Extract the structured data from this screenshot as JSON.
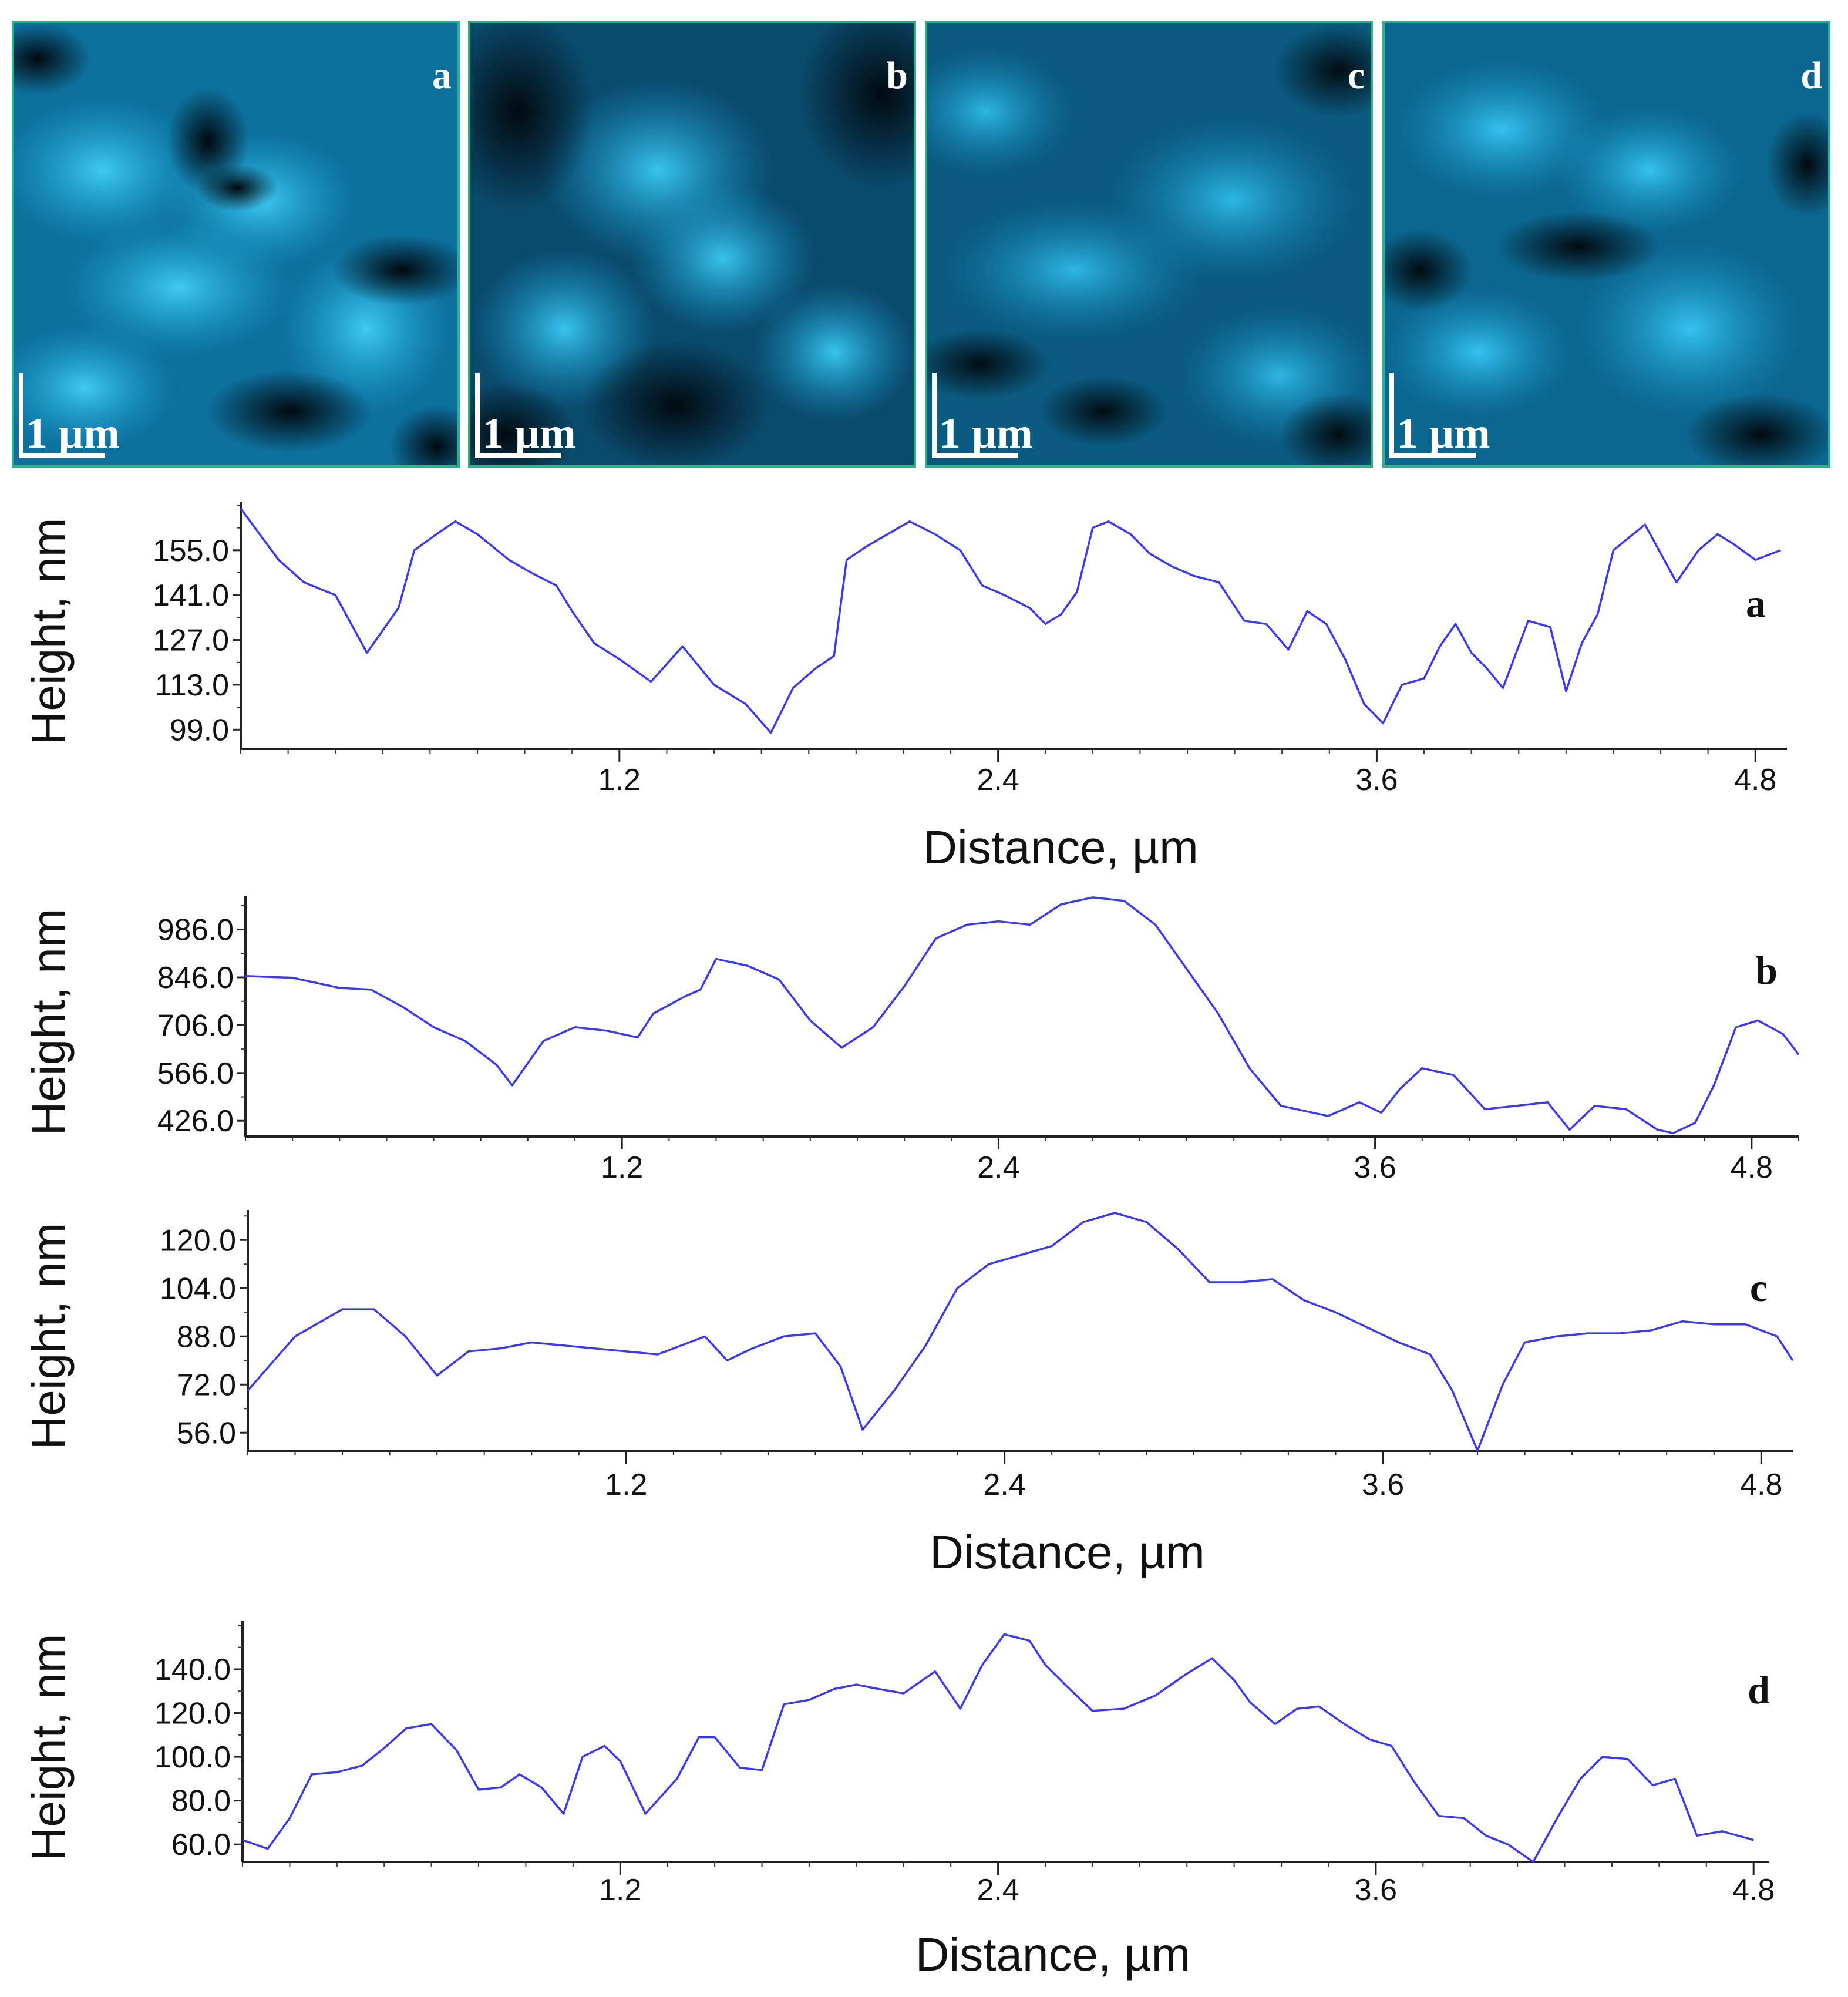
{
  "figure": {
    "afm_panels": [
      {
        "letter": "a",
        "scalebar": "1 µm"
      },
      {
        "letter": "b",
        "scalebar": "1 µm"
      },
      {
        "letter": "c",
        "scalebar": "1 µm"
      },
      {
        "letter": "d",
        "scalebar": "1 µm"
      }
    ],
    "colors": {
      "afm_dark": "#020f18",
      "afm_mid": "#0a5a82",
      "afm_bright": "#23b8e6",
      "frame": "#2fb08a",
      "line": "#3a3af0"
    }
  },
  "chart_data": [
    {
      "type": "line",
      "panel_label": "a",
      "xlabel": "Distance, µm",
      "ylabel": "Height, nm",
      "xlim": [
        0,
        4.9
      ],
      "ylim": [
        93,
        170
      ],
      "xticks": [
        1.2,
        2.4,
        3.6,
        4.8
      ],
      "xtick_labels": [
        "1.2",
        "2.4",
        "3.6",
        "4.8"
      ],
      "yticks": [
        99,
        113,
        127,
        141,
        155
      ],
      "ytick_labels": [
        "99.0",
        "113.0",
        "127.0",
        "141.0",
        "155.0"
      ],
      "series": [
        {
          "name": "a",
          "x": [
            0,
            0.12,
            0.2,
            0.3,
            0.4,
            0.5,
            0.55,
            0.62,
            0.68,
            0.75,
            0.85,
            0.92,
            1.0,
            1.05,
            1.12,
            1.2,
            1.3,
            1.4,
            1.5,
            1.6,
            1.68,
            1.75,
            1.82,
            1.88,
            1.92,
            1.98,
            2.05,
            2.12,
            2.2,
            2.28,
            2.35,
            2.42,
            2.5,
            2.55,
            2.6,
            2.65,
            2.7,
            2.75,
            2.82,
            2.88,
            2.95,
            3.02,
            3.1,
            3.18,
            3.25,
            3.32,
            3.38,
            3.44,
            3.5,
            3.56,
            3.62,
            3.68,
            3.75,
            3.8,
            3.85,
            3.9,
            3.95,
            4.0,
            4.08,
            4.15,
            4.2,
            4.25,
            4.3,
            4.35,
            4.45,
            4.55,
            4.62,
            4.68,
            4.73,
            4.8,
            4.88
          ],
          "y": [
            168,
            152,
            145,
            141,
            123,
            137,
            155,
            160,
            164,
            160,
            152,
            148,
            144,
            136,
            126,
            121,
            114,
            125,
            113,
            107,
            98,
            112,
            118,
            122,
            152,
            156,
            160,
            164,
            160,
            155,
            144,
            141,
            137,
            132,
            135,
            142,
            162,
            164,
            160,
            154,
            150,
            147,
            145,
            133,
            132,
            124,
            136,
            132,
            121,
            107,
            101,
            113,
            115,
            125,
            132,
            123,
            118,
            112,
            133,
            131,
            111,
            126,
            135,
            155,
            163,
            145,
            155,
            160,
            157,
            152,
            155
          ]
        }
      ]
    },
    {
      "type": "line",
      "panel_label": "b",
      "xlabel": "",
      "ylabel": "Height, nm",
      "xlim": [
        0,
        4.95
      ],
      "ylim": [
        380,
        1085
      ],
      "xticks": [
        1.2,
        2.4,
        3.6,
        4.8
      ],
      "xtick_labels": [
        "1.2",
        "2.4",
        "3.6",
        "4.8"
      ],
      "yticks": [
        426,
        566,
        706,
        846,
        986
      ],
      "ytick_labels": [
        "426.0",
        "566.0",
        "706.0",
        "846.0",
        "986.0"
      ],
      "series": [
        {
          "name": "b",
          "x": [
            0,
            0.15,
            0.3,
            0.4,
            0.5,
            0.6,
            0.7,
            0.8,
            0.85,
            0.95,
            1.05,
            1.15,
            1.25,
            1.3,
            1.4,
            1.45,
            1.5,
            1.6,
            1.7,
            1.8,
            1.9,
            2.0,
            2.1,
            2.2,
            2.3,
            2.4,
            2.5,
            2.6,
            2.7,
            2.8,
            2.9,
            3.0,
            3.1,
            3.2,
            3.3,
            3.45,
            3.55,
            3.62,
            3.68,
            3.75,
            3.85,
            3.95,
            4.05,
            4.15,
            4.22,
            4.3,
            4.4,
            4.5,
            4.55,
            4.62,
            4.68,
            4.75,
            4.82,
            4.9,
            4.95
          ],
          "y": [
            850,
            845,
            815,
            810,
            760,
            700,
            660,
            590,
            530,
            660,
            700,
            690,
            670,
            740,
            790,
            810,
            900,
            880,
            840,
            720,
            640,
            700,
            820,
            960,
            1000,
            1010,
            1000,
            1060,
            1080,
            1070,
            1000,
            870,
            740,
            580,
            470,
            440,
            480,
            450,
            520,
            580,
            560,
            460,
            470,
            480,
            400,
            470,
            460,
            400,
            390,
            420,
            530,
            700,
            720,
            680,
            620
          ]
        }
      ]
    },
    {
      "type": "line",
      "panel_label": "c",
      "xlabel": "Distance, µm",
      "ylabel": "Height, nm",
      "xlim": [
        0,
        4.9
      ],
      "ylim": [
        50,
        130
      ],
      "xticks": [
        1.2,
        2.4,
        3.6,
        4.8
      ],
      "xtick_labels": [
        "1.2",
        "2.4",
        "3.6",
        "4.8"
      ],
      "yticks": [
        56,
        72,
        88,
        104,
        120
      ],
      "ytick_labels": [
        "56.0",
        "72.0",
        "88.0",
        "104.0",
        "120.0"
      ],
      "series": [
        {
          "name": "c",
          "x": [
            0,
            0.15,
            0.3,
            0.4,
            0.5,
            0.6,
            0.7,
            0.8,
            0.9,
            1.0,
            1.1,
            1.2,
            1.3,
            1.4,
            1.45,
            1.52,
            1.6,
            1.7,
            1.8,
            1.88,
            1.95,
            2.05,
            2.15,
            2.25,
            2.35,
            2.45,
            2.55,
            2.65,
            2.75,
            2.85,
            2.95,
            3.05,
            3.15,
            3.25,
            3.35,
            3.45,
            3.55,
            3.65,
            3.75,
            3.82,
            3.9,
            3.98,
            4.05,
            4.15,
            4.25,
            4.35,
            4.45,
            4.55,
            4.65,
            4.75,
            4.85,
            4.9
          ],
          "y": [
            70,
            88,
            97,
            97,
            88,
            75,
            83,
            84,
            86,
            85,
            84,
            83,
            82,
            86,
            88,
            80,
            84,
            88,
            89,
            78,
            57,
            70,
            85,
            104,
            112,
            115,
            118,
            126,
            129,
            126,
            117,
            106,
            106,
            107,
            100,
            96,
            91,
            86,
            82,
            70,
            50,
            72,
            86,
            88,
            89,
            89,
            90,
            93,
            92,
            92,
            88,
            80
          ]
        }
      ]
    },
    {
      "type": "line",
      "panel_label": "d",
      "xlabel": "Distance, µm",
      "ylabel": "Height, nm",
      "xlim": [
        0,
        4.85
      ],
      "ylim": [
        52,
        162
      ],
      "xticks": [
        1.2,
        2.4,
        3.6,
        4.8
      ],
      "xtick_labels": [
        "1.2",
        "2.4",
        "3.6",
        "4.8"
      ],
      "yticks": [
        60,
        80,
        100,
        120,
        140
      ],
      "ytick_labels": [
        "60.0",
        "80.0",
        "100.0",
        "120.0",
        "140.0"
      ],
      "series": [
        {
          "name": "d",
          "x": [
            0,
            0.08,
            0.15,
            0.22,
            0.3,
            0.38,
            0.45,
            0.52,
            0.6,
            0.68,
            0.75,
            0.82,
            0.88,
            0.95,
            1.02,
            1.08,
            1.15,
            1.2,
            1.28,
            1.38,
            1.45,
            1.5,
            1.58,
            1.65,
            1.72,
            1.8,
            1.88,
            1.95,
            2.02,
            2.1,
            2.2,
            2.28,
            2.35,
            2.42,
            2.5,
            2.55,
            2.62,
            2.7,
            2.8,
            2.9,
            3.0,
            3.08,
            3.15,
            3.2,
            3.28,
            3.35,
            3.42,
            3.5,
            3.58,
            3.65,
            3.72,
            3.8,
            3.88,
            3.95,
            4.02,
            4.1,
            4.18,
            4.25,
            4.32,
            4.4,
            4.48,
            4.55,
            4.62,
            4.7,
            4.8
          ],
          "y": [
            62,
            58,
            72,
            92,
            93,
            96,
            104,
            113,
            115,
            103,
            85,
            86,
            92,
            86,
            74,
            100,
            105,
            98,
            74,
            90,
            109,
            109,
            95,
            94,
            124,
            126,
            131,
            133,
            131,
            129,
            139,
            122,
            142,
            156,
            153,
            142,
            132,
            121,
            122,
            128,
            138,
            145,
            135,
            125,
            115,
            122,
            123,
            115,
            108,
            105,
            89,
            73,
            72,
            64,
            60,
            52,
            73,
            90,
            100,
            99,
            87,
            90,
            64,
            66,
            62
          ]
        }
      ]
    }
  ]
}
